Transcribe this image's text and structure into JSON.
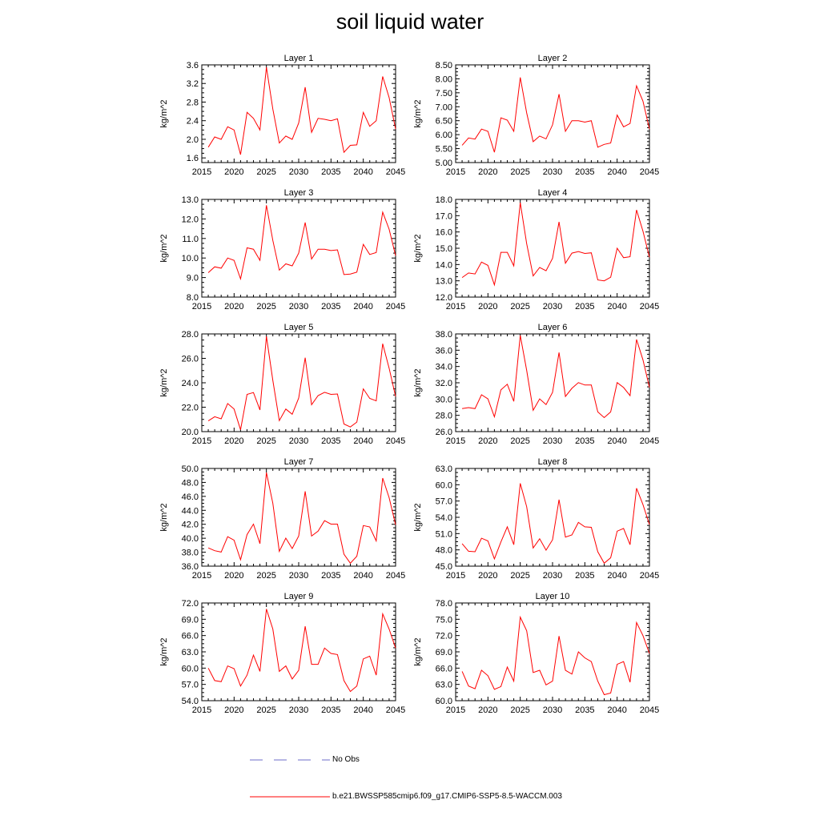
{
  "title": "soil liquid water",
  "legend": [
    {
      "label": "No Obs",
      "color": "#6e6ec8",
      "dash": true
    },
    {
      "label": "b.e21.BWSSP585cmip6.f09_g17.CMIP6-SSP5-8.5-WACCM.003",
      "color": "#ff0000",
      "dash": false
    }
  ],
  "chart_data": [
    {
      "type": "line",
      "title": "Layer 1",
      "ylabel": "kg/m^2",
      "xlim": [
        2015,
        2045
      ],
      "xticks": [
        2015,
        2020,
        2025,
        2030,
        2035,
        2040,
        2045
      ],
      "ylim": [
        1.5,
        3.6
      ],
      "yticks": [
        "1.6",
        "2.0",
        "2.4",
        "2.8",
        "3.2",
        "3.6"
      ],
      "series": [
        {
          "name": "b.e21.BWSSP585cmip6.f09_g17.CMIP6-SSP5-8.5-WACCM.003",
          "x": [
            2016,
            2017,
            2018,
            2019,
            2020,
            2021,
            2022,
            2023,
            2024,
            2025,
            2026,
            2027,
            2028,
            2029,
            2030,
            2031,
            2032,
            2033,
            2034,
            2035,
            2036,
            2037,
            2038,
            2039,
            2040,
            2041,
            2042,
            2043,
            2044,
            2045
          ],
          "values": [
            1.83,
            2.05,
            2.0,
            2.27,
            2.2,
            1.67,
            2.58,
            2.45,
            2.2,
            3.55,
            2.65,
            1.92,
            2.07,
            2.0,
            2.35,
            3.12,
            2.15,
            2.45,
            2.43,
            2.4,
            2.44,
            1.72,
            1.87,
            1.88,
            2.58,
            2.28,
            2.4,
            3.35,
            2.9,
            2.22
          ]
        }
      ]
    },
    {
      "type": "line",
      "title": "Layer 2",
      "ylabel": "kg/m^2",
      "xlim": [
        2015,
        2045
      ],
      "xticks": [
        2015,
        2020,
        2025,
        2030,
        2035,
        2040,
        2045
      ],
      "ylim": [
        5.0,
        8.5
      ],
      "yticks": [
        "5.00",
        "5.50",
        "6.00",
        "6.50",
        "7.00",
        "7.50",
        "8.00",
        "8.50"
      ],
      "series": [
        {
          "name": "b.e21.BWSSP585cmip6.f09_g17.CMIP6-SSP5-8.5-WACCM.003",
          "x": [
            2016,
            2017,
            2018,
            2019,
            2020,
            2021,
            2022,
            2023,
            2024,
            2025,
            2026,
            2027,
            2028,
            2029,
            2030,
            2031,
            2032,
            2033,
            2034,
            2035,
            2036,
            2037,
            2038,
            2039,
            2040,
            2041,
            2042,
            2043,
            2044,
            2045
          ],
          "values": [
            5.62,
            5.88,
            5.84,
            6.2,
            6.12,
            5.37,
            6.6,
            6.52,
            6.12,
            8.05,
            6.78,
            5.75,
            5.95,
            5.85,
            6.35,
            7.45,
            6.12,
            6.5,
            6.5,
            6.45,
            6.5,
            5.55,
            5.65,
            5.7,
            6.7,
            6.28,
            6.4,
            7.75,
            7.2,
            6.2
          ]
        }
      ]
    },
    {
      "type": "line",
      "title": "Layer 3",
      "ylabel": "kg/m^2",
      "xlim": [
        2015,
        2045
      ],
      "xticks": [
        2015,
        2020,
        2025,
        2030,
        2035,
        2040,
        2045
      ],
      "ylim": [
        8.0,
        13.0
      ],
      "yticks": [
        "8.0",
        "9.0",
        "10.0",
        "11.0",
        "12.0",
        "13.0"
      ],
      "series": [
        {
          "name": "b.e21.BWSSP585cmip6.f09_g17.CMIP6-SSP5-8.5-WACCM.003",
          "x": [
            2016,
            2017,
            2018,
            2019,
            2020,
            2021,
            2022,
            2023,
            2024,
            2025,
            2026,
            2027,
            2028,
            2029,
            2030,
            2031,
            2032,
            2033,
            2034,
            2035,
            2036,
            2037,
            2038,
            2039,
            2040,
            2041,
            2042,
            2043,
            2044,
            2045
          ],
          "values": [
            9.25,
            9.55,
            9.48,
            10.0,
            9.88,
            8.93,
            10.52,
            10.45,
            9.88,
            12.7,
            10.9,
            9.38,
            9.7,
            9.6,
            10.25,
            11.82,
            9.95,
            10.45,
            10.45,
            10.38,
            10.42,
            9.15,
            9.18,
            9.28,
            10.7,
            10.18,
            10.28,
            12.35,
            11.48,
            10.12
          ]
        }
      ]
    },
    {
      "type": "line",
      "title": "Layer 4",
      "ylabel": "kg/m^2",
      "xlim": [
        2015,
        2045
      ],
      "xticks": [
        2015,
        2020,
        2025,
        2030,
        2035,
        2040,
        2045
      ],
      "ylim": [
        12.0,
        18.0
      ],
      "yticks": [
        "12.0",
        "13.0",
        "14.0",
        "15.0",
        "16.0",
        "17.0",
        "18.0"
      ],
      "series": [
        {
          "name": "b.e21.BWSSP585cmip6.f09_g17.CMIP6-SSP5-8.5-WACCM.003",
          "x": [
            2016,
            2017,
            2018,
            2019,
            2020,
            2021,
            2022,
            2023,
            2024,
            2025,
            2026,
            2027,
            2028,
            2029,
            2030,
            2031,
            2032,
            2033,
            2034,
            2035,
            2036,
            2037,
            2038,
            2039,
            2040,
            2041,
            2042,
            2043,
            2044,
            2045
          ],
          "values": [
            13.2,
            13.48,
            13.42,
            14.15,
            13.95,
            12.75,
            14.75,
            14.75,
            13.92,
            17.8,
            15.28,
            13.3,
            13.82,
            13.62,
            14.38,
            16.62,
            14.08,
            14.7,
            14.8,
            14.68,
            14.72,
            13.05,
            13.0,
            13.22,
            15.0,
            14.42,
            14.48,
            17.35,
            16.05,
            14.45
          ]
        }
      ]
    },
    {
      "type": "line",
      "title": "Layer 5",
      "ylabel": "kg/m^2",
      "xlim": [
        2015,
        2045
      ],
      "xticks": [
        2015,
        2020,
        2025,
        2030,
        2035,
        2040,
        2045
      ],
      "ylim": [
        20.0,
        28.0
      ],
      "yticks": [
        "20.0",
        "22.0",
        "24.0",
        "26.0",
        "28.0"
      ],
      "series": [
        {
          "name": "b.e21.BWSSP585cmip6.f09_g17.CMIP6-SSP5-8.5-WACCM.003",
          "x": [
            2016,
            2017,
            2018,
            2019,
            2020,
            2021,
            2022,
            2023,
            2024,
            2025,
            2026,
            2027,
            2028,
            2029,
            2030,
            2031,
            2032,
            2033,
            2034,
            2035,
            2036,
            2037,
            2038,
            2039,
            2040,
            2041,
            2042,
            2043,
            2044,
            2045
          ],
          "values": [
            20.88,
            21.22,
            21.05,
            22.3,
            21.85,
            20.15,
            23.05,
            23.2,
            21.78,
            27.8,
            24.2,
            20.9,
            21.85,
            21.42,
            22.75,
            26.05,
            22.2,
            22.95,
            23.22,
            23.05,
            23.08,
            20.62,
            20.38,
            20.78,
            23.5,
            22.72,
            22.52,
            27.2,
            25.2,
            22.88
          ]
        }
      ]
    },
    {
      "type": "line",
      "title": "Layer 6",
      "ylabel": "kg/m^2",
      "xlim": [
        2015,
        2045
      ],
      "xticks": [
        2015,
        2020,
        2025,
        2030,
        2035,
        2040,
        2045
      ],
      "ylim": [
        26.0,
        38.0
      ],
      "yticks": [
        "26.0",
        "28.0",
        "30.0",
        "32.0",
        "34.0",
        "36.0",
        "38.0"
      ],
      "series": [
        {
          "name": "b.e21.BWSSP585cmip6.f09_g17.CMIP6-SSP5-8.5-WACCM.003",
          "x": [
            2016,
            2017,
            2018,
            2019,
            2020,
            2021,
            2022,
            2023,
            2024,
            2025,
            2026,
            2027,
            2028,
            2029,
            2030,
            2031,
            2032,
            2033,
            2034,
            2035,
            2036,
            2037,
            2038,
            2039,
            2040,
            2041,
            2042,
            2043,
            2044,
            2045
          ],
          "values": [
            28.82,
            28.95,
            28.82,
            30.52,
            30.02,
            27.82,
            31.12,
            31.82,
            29.72,
            37.82,
            33.52,
            28.62,
            30.02,
            29.32,
            30.82,
            35.72,
            30.32,
            31.32,
            32.02,
            31.72,
            31.72,
            28.42,
            27.72,
            28.42,
            32.02,
            31.42,
            30.42,
            37.32,
            34.82,
            31.42
          ]
        }
      ]
    },
    {
      "type": "line",
      "title": "Layer 7",
      "ylabel": "kg/m^2",
      "xlim": [
        2015,
        2045
      ],
      "xticks": [
        2015,
        2020,
        2025,
        2030,
        2035,
        2040,
        2045
      ],
      "ylim": [
        36.0,
        50.0
      ],
      "yticks": [
        "36.0",
        "38.0",
        "40.0",
        "42.0",
        "44.0",
        "46.0",
        "48.0",
        "50.0"
      ],
      "series": [
        {
          "name": "b.e21.BWSSP585cmip6.f09_g17.CMIP6-SSP5-8.5-WACCM.003",
          "x": [
            2016,
            2017,
            2018,
            2019,
            2020,
            2021,
            2022,
            2023,
            2024,
            2025,
            2026,
            2027,
            2028,
            2029,
            2030,
            2031,
            2032,
            2033,
            2034,
            2035,
            2036,
            2037,
            2038,
            2039,
            2040,
            2041,
            2042,
            2043,
            2044,
            2045
          ],
          "values": [
            38.62,
            38.22,
            38.02,
            40.22,
            39.72,
            36.92,
            40.52,
            42.02,
            39.22,
            49.42,
            45.02,
            38.12,
            40.02,
            38.52,
            40.32,
            46.72,
            40.32,
            41.02,
            42.52,
            42.02,
            42.02,
            37.72,
            36.42,
            37.42,
            41.82,
            41.62,
            39.62,
            48.62,
            45.82,
            41.92
          ]
        }
      ]
    },
    {
      "type": "line",
      "title": "Layer 8",
      "ylabel": "kg/m^2",
      "xlim": [
        2015,
        2045
      ],
      "xticks": [
        2015,
        2020,
        2025,
        2030,
        2035,
        2040,
        2045
      ],
      "ylim": [
        45.0,
        63.0
      ],
      "yticks": [
        "45.0",
        "48.0",
        "51.0",
        "54.0",
        "57.0",
        "60.0",
        "63.0"
      ],
      "series": [
        {
          "name": "b.e21.BWSSP585cmip6.f09_g17.CMIP6-SSP5-8.5-WACCM.003",
          "x": [
            2016,
            2017,
            2018,
            2019,
            2020,
            2021,
            2022,
            2023,
            2024,
            2025,
            2026,
            2027,
            2028,
            2029,
            2030,
            2031,
            2032,
            2033,
            2034,
            2035,
            2036,
            2037,
            2038,
            2039,
            2040,
            2041,
            2042,
            2043,
            2044,
            2045
          ],
          "values": [
            49.15,
            47.75,
            47.65,
            50.15,
            49.65,
            46.35,
            49.45,
            52.25,
            48.95,
            60.25,
            55.95,
            48.35,
            50.05,
            47.95,
            49.85,
            57.25,
            50.35,
            50.75,
            53.05,
            52.25,
            52.15,
            47.65,
            45.55,
            46.55,
            51.45,
            51.95,
            48.95,
            59.35,
            56.35,
            52.65
          ]
        }
      ]
    },
    {
      "type": "line",
      "title": "Layer 9",
      "ylabel": "kg/m^2",
      "xlim": [
        2015,
        2045
      ],
      "xticks": [
        2015,
        2020,
        2025,
        2030,
        2035,
        2040,
        2045
      ],
      "ylim": [
        54.0,
        72.0
      ],
      "yticks": [
        "54.0",
        "57.0",
        "60.0",
        "63.0",
        "66.0",
        "69.0",
        "72.0"
      ],
      "series": [
        {
          "name": "b.e21.BWSSP585cmip6.f09_g17.CMIP6-SSP5-8.5-WACCM.003",
          "x": [
            2016,
            2017,
            2018,
            2019,
            2020,
            2021,
            2022,
            2023,
            2024,
            2025,
            2026,
            2027,
            2028,
            2029,
            2030,
            2031,
            2032,
            2033,
            2034,
            2035,
            2036,
            2037,
            2038,
            2039,
            2040,
            2041,
            2042,
            2043,
            2044,
            2045
          ],
          "values": [
            60.0,
            57.7,
            57.5,
            60.4,
            59.9,
            56.7,
            58.7,
            62.4,
            59.4,
            70.9,
            67.2,
            59.4,
            60.4,
            58.0,
            59.6,
            67.7,
            60.7,
            60.7,
            63.7,
            62.7,
            62.5,
            57.7,
            55.7,
            56.7,
            61.7,
            62.2,
            58.7,
            70.0,
            67.2,
            63.7
          ]
        }
      ]
    },
    {
      "type": "line",
      "title": "Layer 10",
      "ylabel": "kg/m^2",
      "xlim": [
        2015,
        2045
      ],
      "xticks": [
        2015,
        2020,
        2025,
        2030,
        2035,
        2040,
        2045
      ],
      "ylim": [
        60.0,
        78.0
      ],
      "yticks": [
        "60.0",
        "63.0",
        "66.0",
        "69.0",
        "72.0",
        "75.0",
        "78.0"
      ],
      "series": [
        {
          "name": "b.e21.BWSSP585cmip6.f09_g17.CMIP6-SSP5-8.5-WACCM.003",
          "x": [
            2016,
            2017,
            2018,
            2019,
            2020,
            2021,
            2022,
            2023,
            2024,
            2025,
            2026,
            2027,
            2028,
            2029,
            2030,
            2031,
            2032,
            2033,
            2034,
            2035,
            2036,
            2037,
            2038,
            2039,
            2040,
            2041,
            2042,
            2043,
            2044,
            2045
          ],
          "values": [
            65.4,
            62.7,
            62.2,
            65.6,
            64.6,
            62.1,
            62.6,
            66.2,
            63.6,
            75.4,
            72.9,
            65.2,
            65.6,
            62.9,
            63.6,
            71.9,
            65.6,
            64.9,
            69.0,
            67.9,
            67.2,
            63.6,
            61.1,
            61.4,
            66.7,
            67.2,
            63.4,
            74.4,
            72.0,
            68.7
          ]
        }
      ]
    }
  ]
}
